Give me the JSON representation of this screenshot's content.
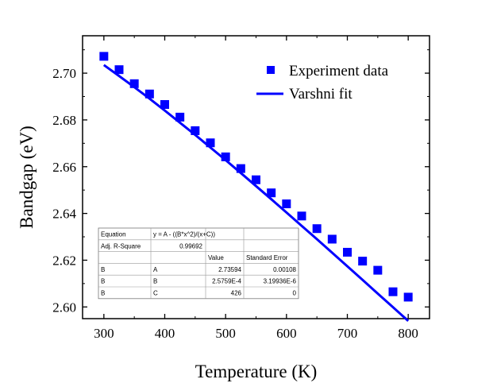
{
  "chart_data": {
    "type": "scatter",
    "xlabel": "Temperature (K)",
    "ylabel": "Bandgap (eV)",
    "xlim": [
      265,
      835
    ],
    "ylim": [
      2.595,
      2.716
    ],
    "x_ticks": [
      300,
      400,
      500,
      600,
      700,
      800
    ],
    "x_tick_labels": [
      "300",
      "400",
      "500",
      "600",
      "700",
      "800"
    ],
    "y_ticks": [
      2.6,
      2.62,
      2.64,
      2.66,
      2.68,
      2.7
    ],
    "y_tick_labels": [
      "2.60",
      "2.62",
      "2.64",
      "2.66",
      "2.68",
      "2.70"
    ],
    "grid": false,
    "legend_position": "top-right",
    "series": [
      {
        "name": "Experiment data",
        "type": "scatter",
        "marker": "square",
        "color": "#0000ff",
        "x": [
          300,
          325,
          350,
          375,
          400,
          425,
          450,
          475,
          500,
          525,
          550,
          575,
          600,
          625,
          650,
          675,
          700,
          725,
          750,
          775,
          800
        ],
        "y": [
          2.7072,
          2.7015,
          2.6955,
          2.6911,
          2.6866,
          2.6812,
          2.6754,
          2.6702,
          2.6642,
          2.6592,
          2.6544,
          2.6488,
          2.6441,
          2.6389,
          2.6335,
          2.629,
          2.6234,
          2.6196,
          2.6157,
          2.6065,
          2.6042
        ]
      },
      {
        "name": "Varshni fit",
        "type": "line",
        "color": "#0000ff",
        "x": [
          300,
          325,
          350,
          375,
          400,
          425,
          450,
          475,
          500,
          525,
          550,
          575,
          600,
          625,
          650,
          675,
          700,
          725,
          750,
          775,
          800
        ],
        "y": [
          2.7035,
          2.6988,
          2.694,
          2.6891,
          2.684,
          2.6788,
          2.6736,
          2.6682,
          2.6628,
          2.6573,
          2.6517,
          2.6461,
          2.6404,
          2.6347,
          2.629,
          2.6232,
          2.6174,
          2.6116,
          2.6057,
          2.5999,
          2.594
        ]
      }
    ],
    "fit_table": {
      "rows": [
        [
          "Equation",
          "y = A - ((B*x^2)/(x+C))",
          "",
          ""
        ],
        [
          "Adj. R-Square",
          "0.99692",
          "",
          ""
        ],
        [
          "",
          "",
          "Value",
          "Standard Error"
        ],
        [
          "B",
          "A",
          "2.73594",
          "0.00108"
        ],
        [
          "B",
          "B",
          "2.5759E-4",
          "3.19936E-6"
        ],
        [
          "B",
          "C",
          "426",
          "0"
        ]
      ]
    }
  }
}
